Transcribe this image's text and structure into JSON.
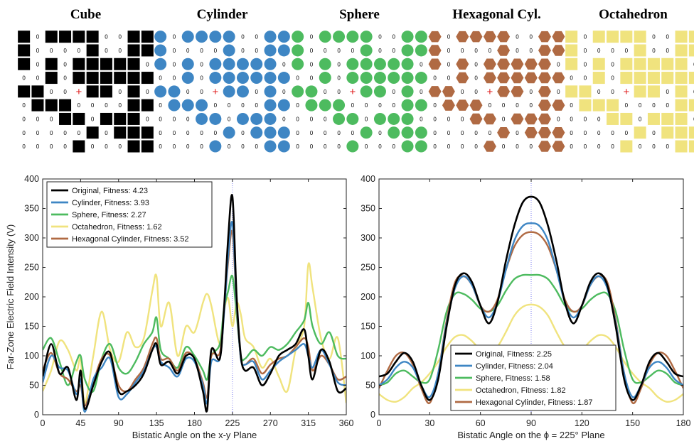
{
  "colors": {
    "Original": "#000000",
    "Cylinder": "#3e86c4",
    "Sphere": "#4dbb5f",
    "Octahedron": "#f0e37e",
    "Hexagonal Cylinder": "#b06a43",
    "marker_cross": "#e02020",
    "center_line": "#7f7ff0"
  },
  "grids": {
    "zero_label": "0",
    "cross_label": "+",
    "panels": [
      {
        "title": "Cube",
        "shape": "square",
        "color": "#000000"
      },
      {
        "title": "Cylinder",
        "shape": "circle",
        "color": "#3e86c4"
      },
      {
        "title": "Sphere",
        "shape": "circle",
        "color": "#4dbb5f"
      },
      {
        "title": "Hexagonal Cyl.",
        "shape": "hexagon",
        "color": "#b06a43"
      },
      {
        "title": "Octahedron",
        "shape": "square",
        "color": "#f0e37e"
      }
    ],
    "pattern": [
      "1011110011",
      "1000010011",
      "1010111110",
      "0010111111",
      "1100011010",
      "0111000011",
      "0001101110",
      "0000010111",
      "0000100011"
    ],
    "center_row": 4,
    "center_col": 4
  },
  "chart_data": [
    {
      "type": "line",
      "xlabel": "Bistatic Angle on the x-y Plane",
      "ylabel": "Far-Zone Electric Field Intensity (V)",
      "xlim": [
        0,
        360
      ],
      "ylim": [
        0,
        400
      ],
      "xticks": [
        0,
        45,
        90,
        135,
        180,
        225,
        270,
        315,
        360
      ],
      "yticks": [
        0,
        50,
        100,
        150,
        200,
        250,
        300,
        350,
        400
      ],
      "legend_position": "top-left",
      "series": [
        {
          "name": "Original",
          "legend": "Original, Fitness: 4.23",
          "x": [
            0,
            10,
            20,
            30,
            40,
            45,
            50,
            60,
            70,
            80,
            90,
            100,
            110,
            120,
            130,
            135,
            140,
            150,
            160,
            170,
            180,
            190,
            195,
            200,
            210,
            215,
            220,
            225,
            230,
            235,
            240,
            250,
            260,
            270,
            280,
            290,
            300,
            310,
            315,
            320,
            330,
            340,
            350,
            360
          ],
          "y": [
            65,
            120,
            70,
            80,
            25,
            75,
            10,
            50,
            90,
            105,
            40,
            40,
            50,
            70,
            110,
            120,
            85,
            90,
            70,
            100,
            95,
            40,
            8,
            110,
            95,
            180,
            300,
            370,
            200,
            100,
            75,
            80,
            50,
            70,
            100,
            110,
            120,
            145,
            100,
            60,
            110,
            90,
            40,
            45
          ]
        },
        {
          "name": "Cylinder",
          "legend": "Cylinder, Fitness: 3.93",
          "x": [
            0,
            10,
            20,
            30,
            40,
            45,
            50,
            60,
            70,
            80,
            90,
            100,
            110,
            120,
            130,
            135,
            140,
            150,
            160,
            170,
            180,
            190,
            195,
            200,
            210,
            215,
            220,
            225,
            230,
            235,
            240,
            250,
            260,
            270,
            280,
            290,
            300,
            310,
            315,
            320,
            330,
            340,
            350,
            360
          ],
          "y": [
            55,
            100,
            80,
            75,
            35,
            60,
            5,
            60,
            80,
            95,
            30,
            35,
            55,
            75,
            110,
            115,
            90,
            80,
            65,
            95,
            90,
            50,
            20,
            90,
            95,
            170,
            270,
            325,
            190,
            95,
            85,
            90,
            60,
            75,
            90,
            100,
            110,
            120,
            100,
            80,
            110,
            85,
            55,
            50
          ]
        },
        {
          "name": "Sphere",
          "legend": "Sphere, Fitness: 2.27",
          "x": [
            0,
            10,
            20,
            30,
            40,
            45,
            50,
            60,
            70,
            80,
            90,
            100,
            110,
            120,
            130,
            135,
            140,
            150,
            160,
            170,
            180,
            190,
            195,
            200,
            210,
            215,
            220,
            225,
            230,
            235,
            240,
            250,
            260,
            270,
            280,
            290,
            300,
            310,
            315,
            320,
            330,
            340,
            350,
            360
          ],
          "y": [
            110,
            130,
            90,
            50,
            90,
            100,
            60,
            40,
            95,
            120,
            80,
            70,
            90,
            120,
            140,
            165,
            110,
            95,
            80,
            115,
            100,
            75,
            60,
            100,
            120,
            180,
            210,
            235,
            170,
            100,
            95,
            110,
            100,
            115,
            110,
            120,
            140,
            160,
            190,
            150,
            120,
            140,
            100,
            95
          ]
        },
        {
          "name": "Octahedron",
          "legend": "Octahedron, Fitness: 1.62",
          "x": [
            0,
            10,
            20,
            30,
            40,
            45,
            50,
            60,
            70,
            80,
            90,
            100,
            110,
            120,
            130,
            135,
            140,
            150,
            160,
            170,
            180,
            190,
            195,
            200,
            210,
            215,
            220,
            225,
            230,
            235,
            240,
            250,
            260,
            270,
            280,
            290,
            300,
            310,
            315,
            320,
            330,
            340,
            350,
            360
          ],
          "y": [
            40,
            75,
            125,
            110,
            75,
            95,
            20,
            100,
            175,
            110,
            90,
            140,
            115,
            130,
            210,
            235,
            150,
            190,
            100,
            150,
            140,
            190,
            205,
            185,
            120,
            175,
            198,
            150,
            190,
            170,
            130,
            115,
            80,
            95,
            65,
            40,
            110,
            150,
            255,
            215,
            130,
            95,
            130,
            20
          ]
        },
        {
          "name": "Hexagonal Cylinder",
          "legend": "Hexagonal Cylinder, Fitness: 3.52",
          "x": [
            0,
            10,
            20,
            30,
            40,
            45,
            50,
            60,
            70,
            80,
            90,
            100,
            110,
            120,
            130,
            135,
            140,
            150,
            160,
            170,
            180,
            190,
            195,
            200,
            210,
            215,
            220,
            225,
            230,
            235,
            240,
            250,
            260,
            270,
            280,
            290,
            300,
            310,
            315,
            320,
            330,
            340,
            350,
            360
          ],
          "y": [
            75,
            105,
            70,
            60,
            40,
            50,
            15,
            55,
            95,
            100,
            50,
            40,
            60,
            80,
            120,
            130,
            95,
            95,
            75,
            105,
            95,
            55,
            30,
            100,
            105,
            175,
            260,
            310,
            185,
            95,
            85,
            95,
            70,
            85,
            95,
            100,
            115,
            130,
            115,
            75,
            100,
            85,
            60,
            65
          ]
        }
      ]
    },
    {
      "type": "line",
      "xlabel": "Bistatic Angle on the ϕ = 225° Plane",
      "ylabel": "",
      "xlim": [
        0,
        180
      ],
      "ylim": [
        0,
        400
      ],
      "xticks": [
        0,
        30,
        60,
        90,
        120,
        150,
        180
      ],
      "yticks": [
        0,
        50,
        100,
        150,
        200,
        250,
        300,
        350,
        400
      ],
      "legend_position": "bottom-right",
      "series": [
        {
          "name": "Original",
          "legend": "Original, Fitness: 2.25",
          "x": [
            0,
            5,
            10,
            15,
            20,
            25,
            30,
            35,
            40,
            45,
            50,
            55,
            60,
            65,
            70,
            75,
            80,
            85,
            90,
            95,
            100,
            105,
            110,
            115,
            120,
            125,
            130,
            135,
            140,
            145,
            150,
            155,
            160,
            165,
            170,
            175,
            180
          ],
          "y": [
            65,
            70,
            90,
            105,
            90,
            50,
            25,
            60,
            150,
            220,
            240,
            225,
            185,
            155,
            190,
            260,
            320,
            360,
            370,
            360,
            320,
            260,
            190,
            155,
            185,
            225,
            240,
            220,
            150,
            60,
            25,
            50,
            90,
            105,
            90,
            70,
            65
          ]
        },
        {
          "name": "Cylinder",
          "legend": "Cylinder, Fitness: 2.04",
          "x": [
            0,
            5,
            10,
            15,
            20,
            25,
            30,
            35,
            40,
            45,
            50,
            55,
            60,
            65,
            70,
            75,
            80,
            85,
            90,
            95,
            100,
            105,
            110,
            115,
            120,
            125,
            130,
            135,
            140,
            145,
            150,
            155,
            160,
            165,
            170,
            175,
            180
          ],
          "y": [
            50,
            60,
            80,
            90,
            80,
            50,
            30,
            70,
            155,
            215,
            235,
            220,
            185,
            165,
            190,
            245,
            295,
            320,
            325,
            320,
            295,
            245,
            190,
            165,
            185,
            220,
            235,
            215,
            155,
            70,
            30,
            50,
            80,
            90,
            80,
            60,
            50
          ]
        },
        {
          "name": "Sphere",
          "legend": "Sphere, Fitness: 1.58",
          "x": [
            0,
            5,
            10,
            15,
            20,
            25,
            30,
            35,
            40,
            45,
            50,
            55,
            60,
            65,
            70,
            75,
            80,
            85,
            90,
            95,
            100,
            105,
            110,
            115,
            120,
            125,
            130,
            135,
            140,
            145,
            150,
            155,
            160,
            165,
            170,
            175,
            180
          ],
          "y": [
            50,
            55,
            70,
            75,
            65,
            55,
            60,
            110,
            175,
            205,
            205,
            195,
            180,
            175,
            185,
            210,
            230,
            237,
            237,
            237,
            230,
            210,
            185,
            175,
            180,
            195,
            205,
            205,
            175,
            110,
            60,
            55,
            65,
            75,
            70,
            55,
            50
          ]
        },
        {
          "name": "Octahedron",
          "legend": "Octahedron, Fitness: 1.82",
          "x": [
            0,
            5,
            10,
            15,
            20,
            25,
            30,
            35,
            40,
            45,
            50,
            55,
            60,
            65,
            70,
            75,
            80,
            85,
            90,
            95,
            100,
            105,
            110,
            115,
            120,
            125,
            130,
            135,
            140,
            145,
            150,
            155,
            160,
            165,
            170,
            175,
            180
          ],
          "y": [
            35,
            25,
            22,
            30,
            45,
            55,
            70,
            90,
            115,
            132,
            135,
            125,
            110,
            105,
            115,
            140,
            168,
            183,
            187,
            183,
            168,
            140,
            115,
            105,
            110,
            125,
            135,
            132,
            115,
            90,
            70,
            55,
            45,
            30,
            22,
            25,
            35
          ]
        },
        {
          "name": "Hexagonal Cylinder",
          "legend": "Hexagonal Cylinder, Fitness: 1.87",
          "x": [
            0,
            5,
            10,
            15,
            20,
            25,
            30,
            35,
            40,
            45,
            50,
            55,
            60,
            65,
            70,
            75,
            80,
            85,
            90,
            95,
            100,
            105,
            110,
            115,
            120,
            125,
            130,
            135,
            140,
            145,
            150,
            155,
            160,
            165,
            170,
            175,
            180
          ],
          "y": [
            45,
            75,
            100,
            105,
            85,
            45,
            20,
            70,
            160,
            225,
            235,
            220,
            185,
            175,
            195,
            245,
            285,
            305,
            310,
            305,
            285,
            245,
            195,
            175,
            185,
            220,
            235,
            225,
            160,
            70,
            20,
            45,
            85,
            105,
            100,
            75,
            45
          ]
        }
      ]
    }
  ]
}
